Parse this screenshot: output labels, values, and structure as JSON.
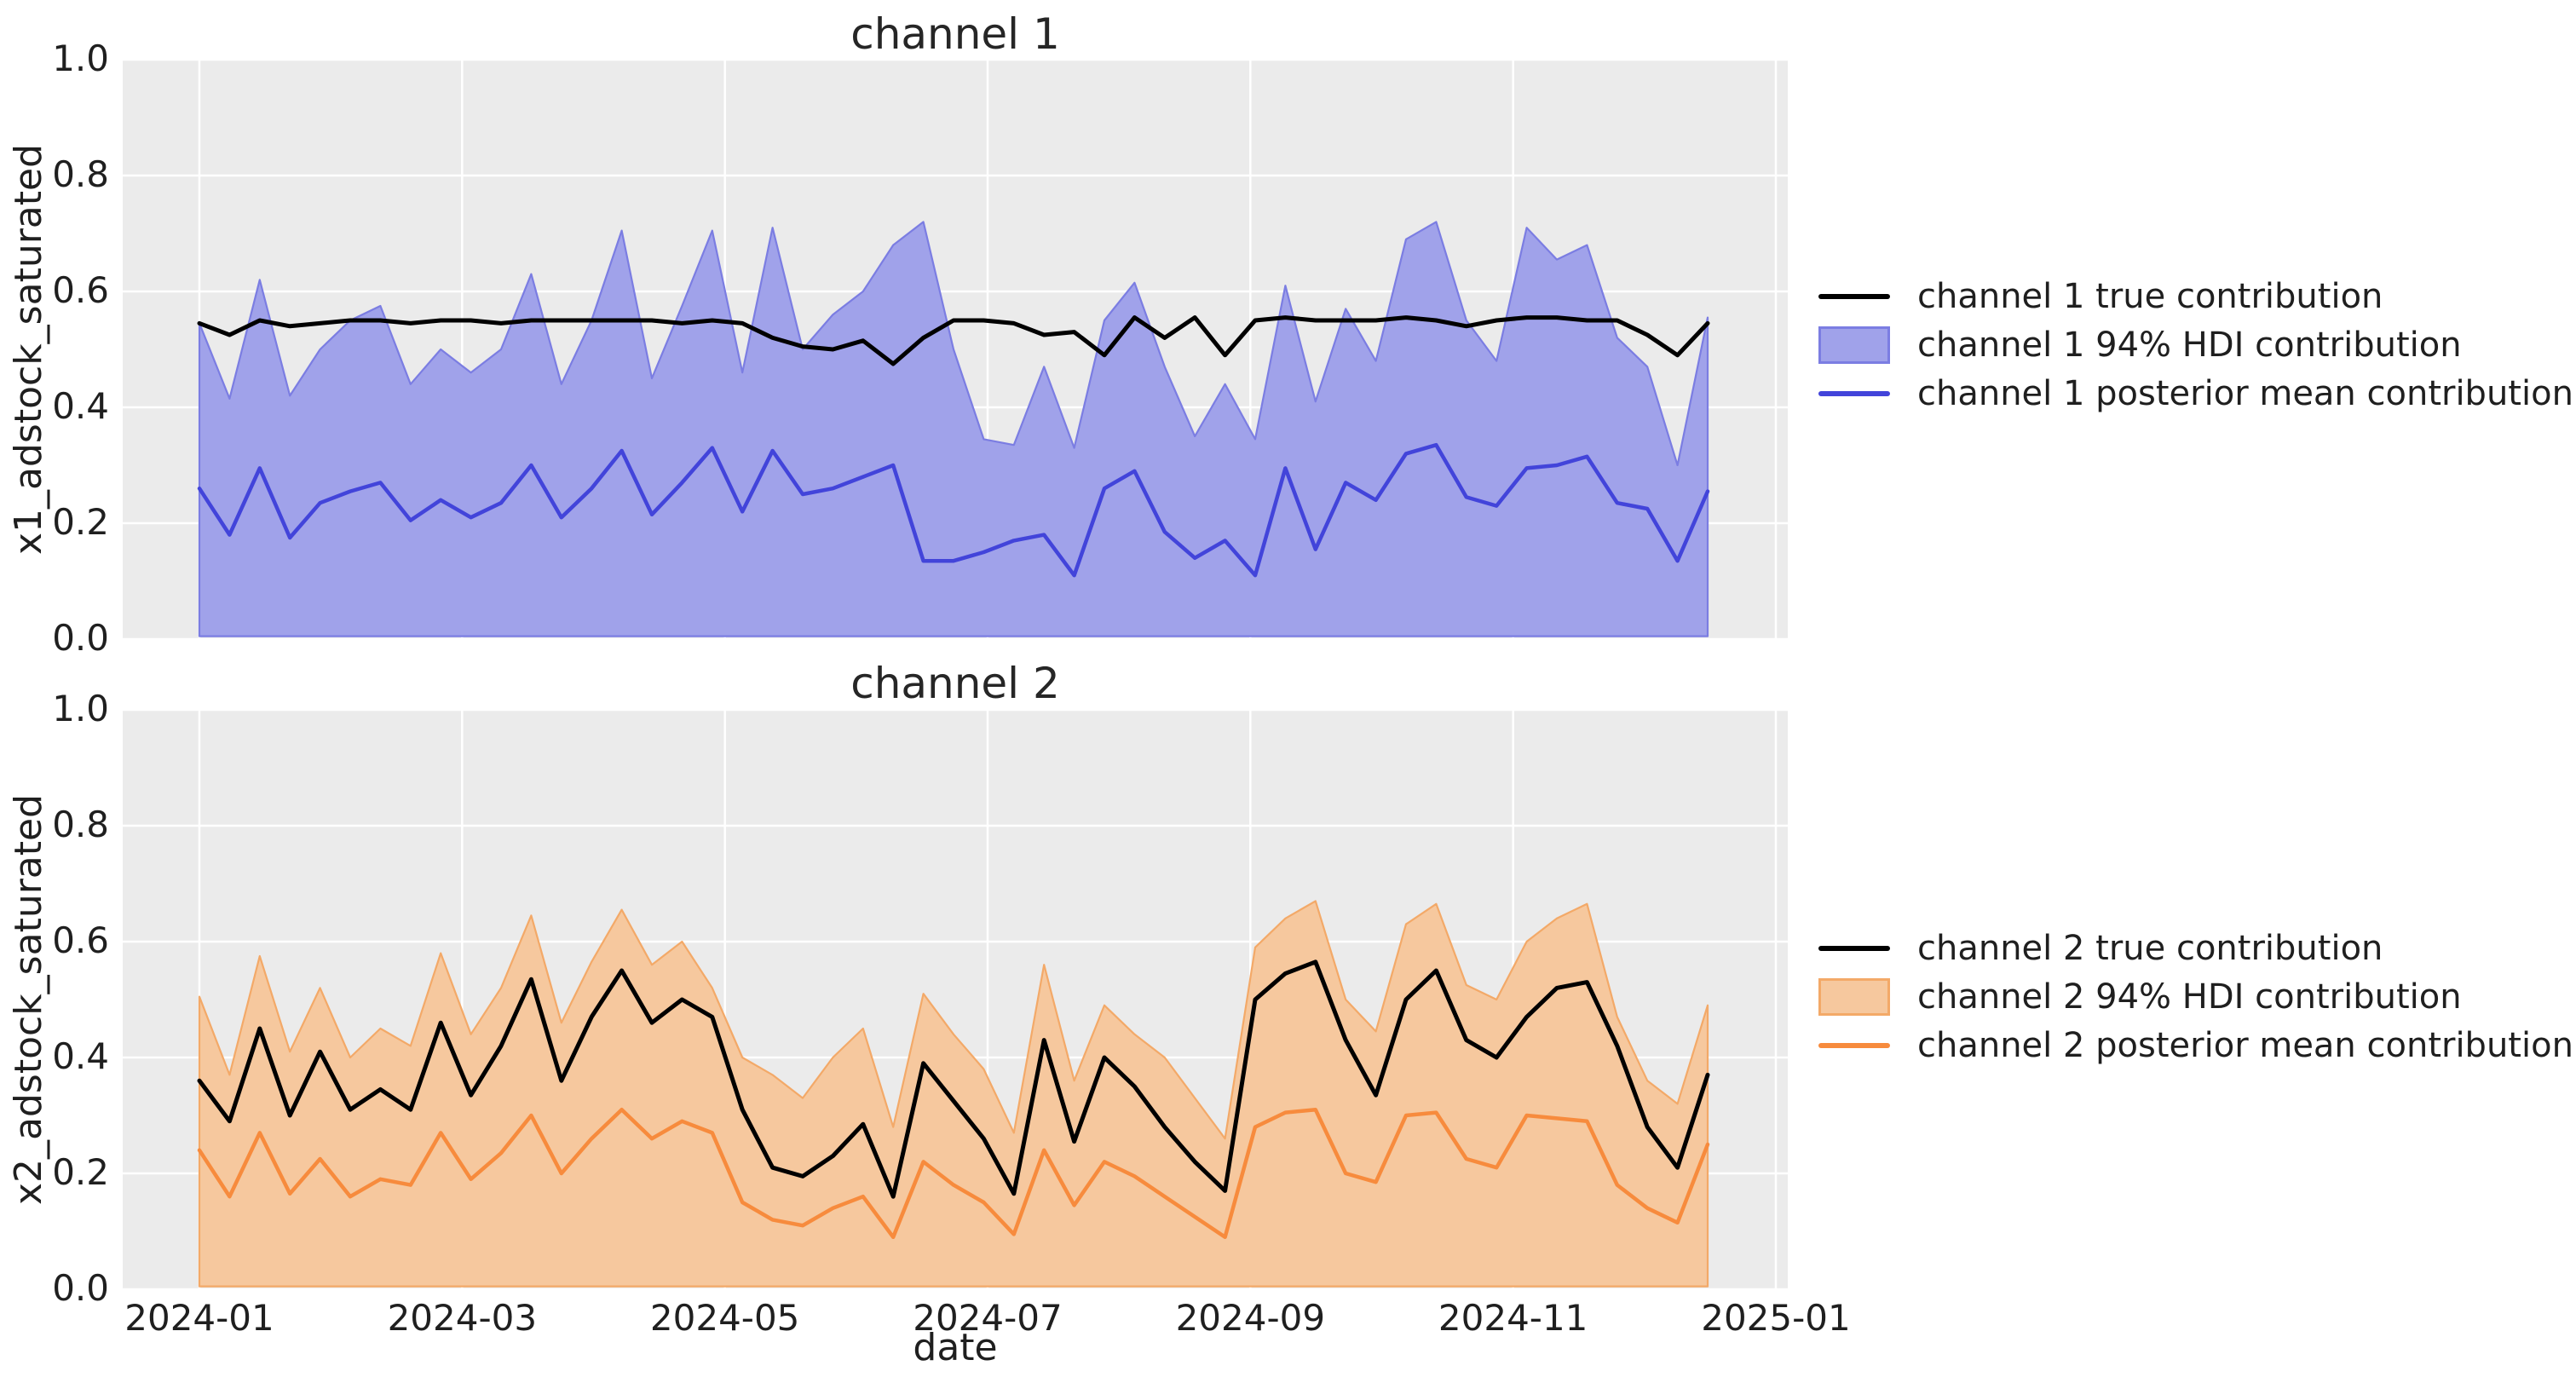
{
  "style": {
    "figure_bg": "#ffffff",
    "axes_bg": "#ebebeb",
    "grid": "#ffffff",
    "text": "#1f1f1f",
    "title_color": "#262626"
  },
  "chart_data": [
    {
      "type": "line",
      "subtype": "lines-with-hdi-band",
      "title": "channel 1",
      "ylabel": "x1_adstock_saturated",
      "ylim": [
        0.0,
        1.0
      ],
      "grid": true,
      "legend_position": "right",
      "yticks": [
        {
          "v": 0.0,
          "label": "0.0"
        },
        {
          "v": 0.2,
          "label": "0.2"
        },
        {
          "v": 0.4,
          "label": "0.4"
        },
        {
          "v": 0.6,
          "label": "0.6"
        },
        {
          "v": 0.8,
          "label": "0.8"
        },
        {
          "v": 1.0,
          "label": "1.0"
        }
      ],
      "x": [
        "2024-01-01",
        "2024-01-08",
        "2024-01-15",
        "2024-01-22",
        "2024-01-29",
        "2024-02-05",
        "2024-02-12",
        "2024-02-19",
        "2024-02-26",
        "2024-03-04",
        "2024-03-11",
        "2024-03-18",
        "2024-03-25",
        "2024-04-01",
        "2024-04-08",
        "2024-04-15",
        "2024-04-22",
        "2024-04-29",
        "2024-05-06",
        "2024-05-13",
        "2024-05-20",
        "2024-05-27",
        "2024-06-03",
        "2024-06-10",
        "2024-06-17",
        "2024-06-24",
        "2024-07-01",
        "2024-07-08",
        "2024-07-15",
        "2024-07-22",
        "2024-07-29",
        "2024-08-05",
        "2024-08-12",
        "2024-08-19",
        "2024-08-26",
        "2024-09-02",
        "2024-09-09",
        "2024-09-16",
        "2024-09-23",
        "2024-09-30",
        "2024-10-07",
        "2024-10-14",
        "2024-10-21",
        "2024-10-28",
        "2024-11-04",
        "2024-11-11",
        "2024-11-18",
        "2024-11-25",
        "2024-12-02",
        "2024-12-09",
        "2024-12-16"
      ],
      "series": [
        {
          "name": "channel 1 true contribution",
          "type": "line",
          "color": "#000000",
          "values": [
            0.545,
            0.525,
            0.55,
            0.54,
            0.545,
            0.55,
            0.55,
            0.545,
            0.55,
            0.55,
            0.545,
            0.55,
            0.55,
            0.55,
            0.55,
            0.55,
            0.545,
            0.55,
            0.545,
            0.52,
            0.505,
            0.5,
            0.515,
            0.475,
            0.52,
            0.55,
            0.55,
            0.545,
            0.525,
            0.53,
            0.49,
            0.555,
            0.52,
            0.555,
            0.49,
            0.55,
            0.555,
            0.55,
            0.55,
            0.55,
            0.555,
            0.55,
            0.54,
            0.55,
            0.555,
            0.555,
            0.55,
            0.55,
            0.525,
            0.49,
            0.545
          ]
        },
        {
          "name": "channel 1 94% HDI contribution",
          "type": "band",
          "fill": "#a0a2ea",
          "edge": "#7b7de2",
          "lower_bound": 0.005,
          "upper": [
            0.545,
            0.415,
            0.62,
            0.42,
            0.5,
            0.55,
            0.575,
            0.44,
            0.5,
            0.46,
            0.5,
            0.63,
            0.44,
            0.55,
            0.705,
            0.45,
            0.575,
            0.705,
            0.46,
            0.71,
            0.5,
            0.56,
            0.6,
            0.68,
            0.72,
            0.5,
            0.345,
            0.335,
            0.47,
            0.33,
            0.55,
            0.615,
            0.47,
            0.35,
            0.44,
            0.345,
            0.61,
            0.41,
            0.57,
            0.48,
            0.69,
            0.72,
            0.55,
            0.48,
            0.71,
            0.655,
            0.68,
            0.52,
            0.47,
            0.3,
            0.555
          ]
        },
        {
          "name": "channel 1 posterior mean contribution",
          "type": "line",
          "color": "#4244da",
          "values": [
            0.26,
            0.18,
            0.295,
            0.175,
            0.235,
            0.255,
            0.27,
            0.205,
            0.24,
            0.21,
            0.235,
            0.3,
            0.21,
            0.26,
            0.325,
            0.215,
            0.27,
            0.33,
            0.22,
            0.325,
            0.25,
            0.26,
            0.28,
            0.3,
            0.135,
            0.135,
            0.15,
            0.17,
            0.18,
            0.11,
            0.26,
            0.29,
            0.185,
            0.14,
            0.17,
            0.11,
            0.295,
            0.155,
            0.27,
            0.24,
            0.32,
            0.335,
            0.245,
            0.23,
            0.295,
            0.3,
            0.315,
            0.235,
            0.225,
            0.135,
            0.255
          ]
        }
      ]
    },
    {
      "type": "line",
      "subtype": "lines-with-hdi-band",
      "title": "channel 2",
      "ylabel": "x2_adstock_saturated",
      "xlabel": "date",
      "ylim": [
        0.0,
        1.0
      ],
      "grid": true,
      "legend_position": "right",
      "yticks": [
        {
          "v": 0.0,
          "label": "0.0"
        },
        {
          "v": 0.2,
          "label": "0.2"
        },
        {
          "v": 0.4,
          "label": "0.4"
        },
        {
          "v": 0.6,
          "label": "0.6"
        },
        {
          "v": 0.8,
          "label": "0.8"
        },
        {
          "v": 1.0,
          "label": "1.0"
        }
      ],
      "xtick_labels": [
        "2024-01",
        "2024-03",
        "2024-05",
        "2024-07",
        "2024-09",
        "2024-11",
        "2025-01"
      ],
      "x": [
        "2024-01-01",
        "2024-01-08",
        "2024-01-15",
        "2024-01-22",
        "2024-01-29",
        "2024-02-05",
        "2024-02-12",
        "2024-02-19",
        "2024-02-26",
        "2024-03-04",
        "2024-03-11",
        "2024-03-18",
        "2024-03-25",
        "2024-04-01",
        "2024-04-08",
        "2024-04-15",
        "2024-04-22",
        "2024-04-29",
        "2024-05-06",
        "2024-05-13",
        "2024-05-20",
        "2024-05-27",
        "2024-06-03",
        "2024-06-10",
        "2024-06-17",
        "2024-06-24",
        "2024-07-01",
        "2024-07-08",
        "2024-07-15",
        "2024-07-22",
        "2024-07-29",
        "2024-08-05",
        "2024-08-12",
        "2024-08-19",
        "2024-08-26",
        "2024-09-02",
        "2024-09-09",
        "2024-09-16",
        "2024-09-23",
        "2024-09-30",
        "2024-10-07",
        "2024-10-14",
        "2024-10-21",
        "2024-10-28",
        "2024-11-04",
        "2024-11-11",
        "2024-11-18",
        "2024-11-25",
        "2024-12-02",
        "2024-12-09",
        "2024-12-16"
      ],
      "series": [
        {
          "name": "channel 2 true contribution",
          "type": "line",
          "color": "#000000",
          "values": [
            0.36,
            0.29,
            0.45,
            0.3,
            0.41,
            0.31,
            0.345,
            0.31,
            0.46,
            0.335,
            0.42,
            0.535,
            0.36,
            0.47,
            0.55,
            0.46,
            0.5,
            0.47,
            0.31,
            0.21,
            0.195,
            0.23,
            0.285,
            0.16,
            0.39,
            0.325,
            0.26,
            0.165,
            0.43,
            0.255,
            0.4,
            0.35,
            0.28,
            0.22,
            0.17,
            0.5,
            0.545,
            0.565,
            0.43,
            0.335,
            0.5,
            0.55,
            0.43,
            0.4,
            0.47,
            0.52,
            0.53,
            0.42,
            0.28,
            0.21,
            0.37
          ]
        },
        {
          "name": "channel 2 94% HDI contribution",
          "type": "band",
          "fill": "#f6c89e",
          "edge": "#f3a968",
          "lower_bound": 0.005,
          "upper": [
            0.505,
            0.37,
            0.575,
            0.41,
            0.52,
            0.4,
            0.45,
            0.42,
            0.58,
            0.44,
            0.52,
            0.645,
            0.46,
            0.565,
            0.655,
            0.56,
            0.6,
            0.52,
            0.4,
            0.37,
            0.33,
            0.4,
            0.45,
            0.28,
            0.51,
            0.44,
            0.38,
            0.27,
            0.56,
            0.36,
            0.49,
            0.44,
            0.4,
            0.33,
            0.26,
            0.59,
            0.64,
            0.67,
            0.5,
            0.445,
            0.63,
            0.665,
            0.525,
            0.5,
            0.6,
            0.64,
            0.665,
            0.47,
            0.36,
            0.32,
            0.49
          ]
        },
        {
          "name": "channel 2 posterior mean contribution",
          "type": "line",
          "color": "#f78b3d",
          "values": [
            0.24,
            0.16,
            0.27,
            0.165,
            0.225,
            0.16,
            0.19,
            0.18,
            0.27,
            0.19,
            0.235,
            0.3,
            0.2,
            0.26,
            0.31,
            0.26,
            0.29,
            0.27,
            0.15,
            0.12,
            0.11,
            0.14,
            0.16,
            0.09,
            0.22,
            0.18,
            0.15,
            0.095,
            0.24,
            0.145,
            0.22,
            0.195,
            0.16,
            0.125,
            0.09,
            0.28,
            0.305,
            0.31,
            0.2,
            0.185,
            0.3,
            0.305,
            0.225,
            0.21,
            0.3,
            0.295,
            0.29,
            0.18,
            0.14,
            0.115,
            0.25
          ]
        }
      ]
    }
  ]
}
